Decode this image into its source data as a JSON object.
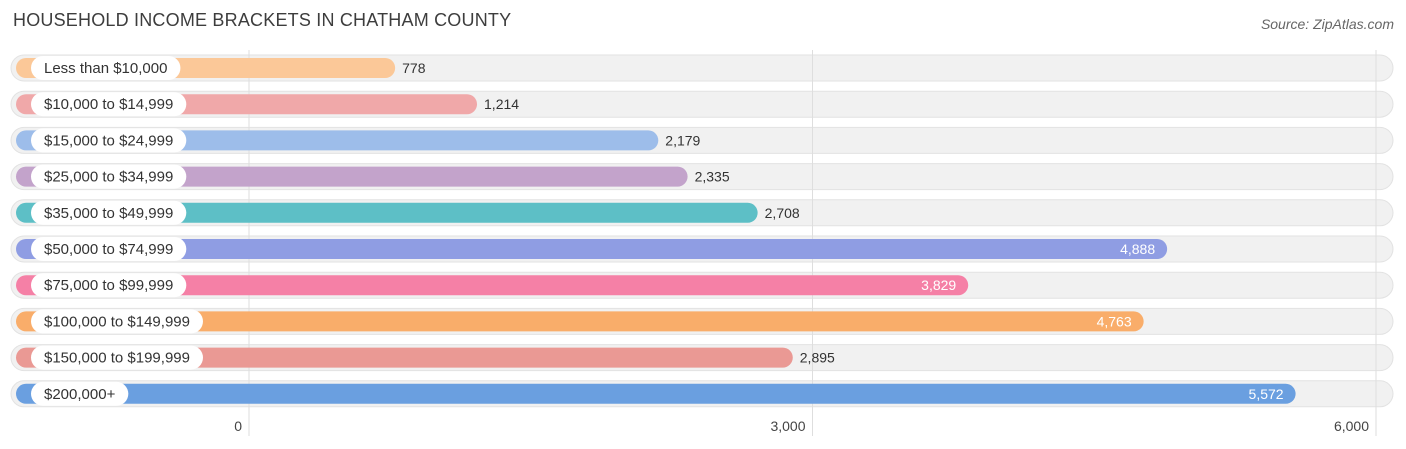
{
  "header": {
    "title": "HOUSEHOLD INCOME BRACKETS IN CHATHAM COUNTY",
    "source": "Source: ZipAtlas.com"
  },
  "chart_data": {
    "type": "bar",
    "orientation": "horizontal",
    "title": "HOUSEHOLD INCOME BRACKETS IN CHATHAM COUNTY",
    "xlabel": "",
    "ylabel": "",
    "xlim": [
      0,
      6000
    ],
    "ticks": [
      0,
      3000,
      6000
    ],
    "tick_labels": [
      "0",
      "3,000",
      "6,000"
    ],
    "grid": true,
    "categories": [
      "Less than $10,000",
      "$10,000 to $14,999",
      "$15,000 to $24,999",
      "$25,000 to $34,999",
      "$35,000 to $49,999",
      "$50,000 to $74,999",
      "$75,000 to $99,999",
      "$100,000 to $149,999",
      "$150,000 to $199,999",
      "$200,000+"
    ],
    "values": [
      778,
      1214,
      2179,
      2335,
      2708,
      4888,
      3829,
      4763,
      2895,
      5572
    ],
    "value_labels": [
      "778",
      "1,214",
      "2,179",
      "2,335",
      "2,708",
      "4,888",
      "3,829",
      "4,763",
      "2,895",
      "5,572"
    ],
    "colors": [
      "#fbc898",
      "#f0a8a9",
      "#9dbdea",
      "#c3a3cb",
      "#5dbfc6",
      "#8f9de3",
      "#f580a6",
      "#f9ad6a",
      "#ea9994",
      "#6a9fe0"
    ]
  }
}
